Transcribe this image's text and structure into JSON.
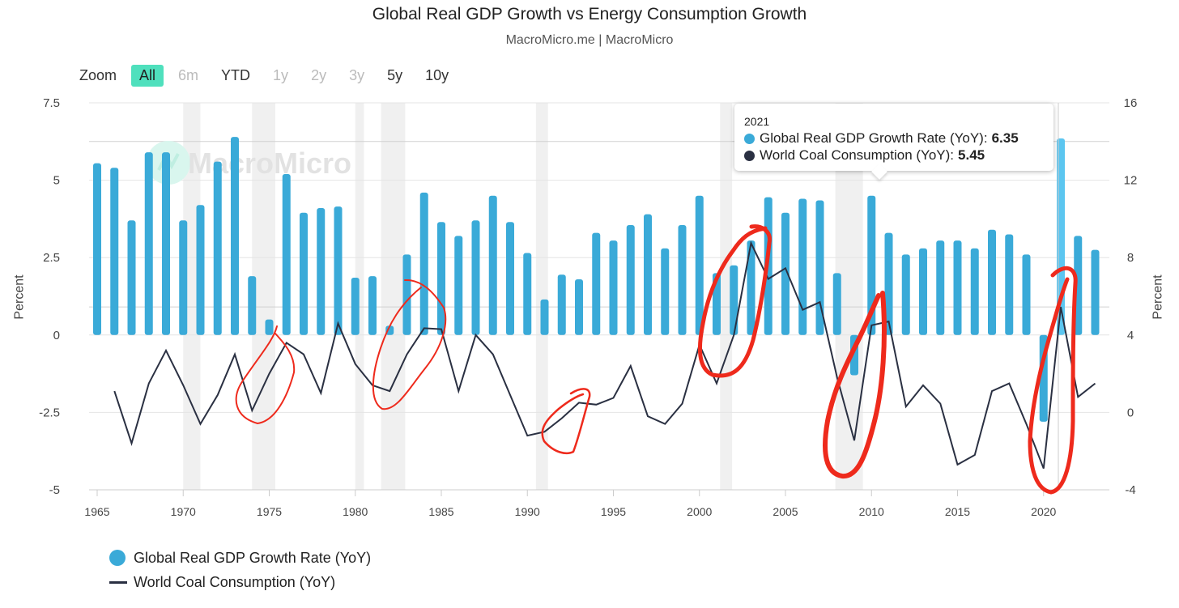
{
  "header": {
    "title": "Global Real GDP Growth vs Energy Consumption Growth",
    "subtitle": "MacroMicro.me | MacroMicro"
  },
  "zoom": {
    "label": "Zoom",
    "options": [
      {
        "label": "All",
        "state": "active"
      },
      {
        "label": "6m",
        "state": "disabled"
      },
      {
        "label": "YTD",
        "state": "enabled"
      },
      {
        "label": "1y",
        "state": "disabled"
      },
      {
        "label": "2y",
        "state": "disabled"
      },
      {
        "label": "3y",
        "state": "disabled"
      },
      {
        "label": "5y",
        "state": "enabled"
      },
      {
        "label": "10y",
        "state": "enabled"
      }
    ]
  },
  "watermark": "MacroMicro",
  "tooltip": {
    "year": "2021",
    "gdp_label": "Global Real GDP Growth Rate (YoY):",
    "gdp_value": "6.35",
    "coal_label": "World Coal Consumption (YoY):",
    "coal_value": "5.45"
  },
  "colors": {
    "gdp": "#3aaad8",
    "gdp_highlight": "#5cc6f0",
    "coal": "#2a3042",
    "annotation": "#ee2a1c",
    "recession": "#f0f0f0"
  },
  "chart_data": {
    "type": "bar+line",
    "title": "Global Real GDP Growth vs Energy Consumption Growth",
    "x": [
      1965,
      1966,
      1967,
      1968,
      1969,
      1970,
      1971,
      1972,
      1973,
      1974,
      1975,
      1976,
      1977,
      1978,
      1979,
      1980,
      1981,
      1982,
      1983,
      1984,
      1985,
      1986,
      1987,
      1988,
      1989,
      1990,
      1991,
      1992,
      1993,
      1994,
      1995,
      1996,
      1997,
      1998,
      1999,
      2000,
      2001,
      2002,
      2003,
      2004,
      2005,
      2006,
      2007,
      2008,
      2009,
      2010,
      2011,
      2012,
      2013,
      2014,
      2015,
      2016,
      2017,
      2018,
      2019,
      2020,
      2021,
      2022,
      2023
    ],
    "series": [
      {
        "name": "Global Real GDP Growth Rate (YoY)",
        "type": "bar",
        "axis": "left",
        "values": [
          5.55,
          5.4,
          3.7,
          5.9,
          5.9,
          3.7,
          4.2,
          5.6,
          6.4,
          1.9,
          0.5,
          5.2,
          3.95,
          4.1,
          4.15,
          1.85,
          1.9,
          0.3,
          2.6,
          4.6,
          3.65,
          3.2,
          3.7,
          4.5,
          3.65,
          2.65,
          1.15,
          1.95,
          1.8,
          3.3,
          3.05,
          3.55,
          3.9,
          2.8,
          3.55,
          4.5,
          2.0,
          2.25,
          3.05,
          4.45,
          3.95,
          4.4,
          4.35,
          2.0,
          -1.3,
          4.5,
          3.3,
          2.6,
          2.8,
          3.05,
          3.05,
          2.8,
          3.4,
          3.25,
          2.6,
          -2.8,
          6.35,
          3.2,
          2.75
        ]
      },
      {
        "name": "World Coal Consumption (YoY)",
        "type": "line",
        "axis": "right",
        "values": [
          null,
          1.1,
          -1.6,
          1.5,
          3.2,
          1.4,
          -0.6,
          0.9,
          3.0,
          0.1,
          2.0,
          3.6,
          3.0,
          1.0,
          4.6,
          2.5,
          1.4,
          1.1,
          3.0,
          4.35,
          4.3,
          1.1,
          4.0,
          3.0,
          0.9,
          -1.2,
          -1.0,
          -0.3,
          0.5,
          0.4,
          0.75,
          2.4,
          -0.2,
          -0.6,
          0.45,
          3.5,
          1.5,
          4.0,
          8.75,
          6.9,
          7.45,
          5.3,
          5.7,
          1.8,
          -1.45,
          4.5,
          4.7,
          0.3,
          1.4,
          0.45,
          -2.7,
          -2.2,
          1.1,
          1.5,
          -0.6,
          -2.9,
          5.45,
          0.8,
          1.5
        ]
      }
    ],
    "recessions": [
      [
        1970,
        1971
      ],
      [
        1974,
        1975.35
      ],
      [
        1980,
        1980.5
      ],
      [
        1981.5,
        1982.9
      ],
      [
        1990.5,
        1991.2
      ],
      [
        2001.2,
        2001.9
      ],
      [
        2007.9,
        2009.5
      ]
    ],
    "x_ticks": [
      "1965",
      "1970",
      "1975",
      "1980",
      "1985",
      "1990",
      "1995",
      "2000",
      "2005",
      "2010",
      "2015",
      "2020"
    ],
    "left_axis": {
      "label": "Percent",
      "ticks": [
        "7.5",
        "5",
        "2.5",
        "0",
        "-2.5",
        "-5"
      ],
      "range": [
        -5,
        7.5
      ]
    },
    "right_axis": {
      "label": "Percent",
      "ticks": [
        "16",
        "12",
        "8",
        "4",
        "0",
        "-4"
      ],
      "range": [
        -4,
        16
      ]
    },
    "highlight_year": 2021,
    "legend_position": "bottom-left"
  }
}
